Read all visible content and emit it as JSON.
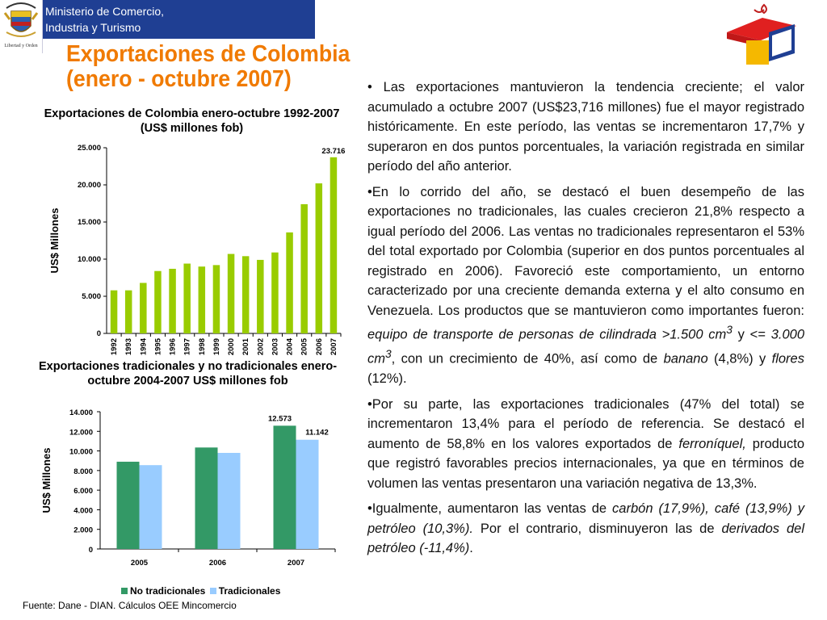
{
  "header": {
    "ministry_line1": "Ministerio de Comercio,",
    "ministry_line2": "Industria y Turismo",
    "logo_caption": "Libertad y Orden",
    "bar_color": "#1f3f93"
  },
  "title": {
    "line1": "Exportaciones de Colombia",
    "line2": "(enero - octubre 2007)",
    "color": "#f07a00"
  },
  "chart_data": [
    {
      "type": "bar",
      "title": "Exportaciones de Colombia enero-octubre 1992-2007 (US$ millones fob)",
      "ylabel": "US$ Millones",
      "xlabel": "",
      "ylim": [
        0,
        25000
      ],
      "yticks": [
        "0",
        "5.000",
        "10.000",
        "15.000",
        "20.000",
        "25.000"
      ],
      "categories": [
        "1992",
        "1993",
        "1994",
        "1995",
        "1996",
        "1997",
        "1998",
        "1999",
        "2000",
        "2001",
        "2002",
        "2003",
        "2004",
        "2005",
        "2006",
        "2007"
      ],
      "values": [
        5800,
        5800,
        6800,
        8400,
        8700,
        9400,
        9000,
        9200,
        10700,
        10400,
        9900,
        10900,
        13600,
        17400,
        20200,
        23716
      ],
      "data_labels": {
        "2007": "23.716"
      },
      "color": "#99cc00",
      "grid": false
    },
    {
      "type": "bar",
      "title": "Exportaciones tradicionales y no tradicionales enero- octubre 2004-2007 US$ millones fob",
      "ylabel": "US$ Millones",
      "xlabel": "",
      "ylim": [
        0,
        14000
      ],
      "yticks": [
        "0",
        "2.000",
        "4.000",
        "6.000",
        "8.000",
        "10.000",
        "12.000",
        "14.000"
      ],
      "categories": [
        "2005",
        "2006",
        "2007"
      ],
      "series": [
        {
          "name": "No tradicionales",
          "values": [
            8900,
            10350,
            12573
          ],
          "color": "#339966",
          "labels": [
            "",
            "",
            "12.573"
          ]
        },
        {
          "name": "Tradicionales",
          "values": [
            8550,
            9800,
            11142
          ],
          "color": "#99ccff",
          "labels": [
            "",
            "",
            "11.142"
          ]
        }
      ],
      "legend_position": "bottom",
      "grid": false
    }
  ],
  "body": {
    "p1": "• Las exportaciones mantuvieron la tendencia creciente; el valor acumulado a octubre 2007 (US$23,716 millones) fue el mayor registrado históricamente. En este período, las ventas se incrementaron 17,7% y superaron en dos puntos porcentuales, la variación registrada en similar período del año anterior.",
    "p2_a": "•En lo corrido del año, se destacó el buen desempeño de las exportaciones no tradicionales, las cuales crecieron 21,8% respecto a igual período del 2006. Las ventas no tradicionales representaron el 53% del total exportado por Colombia (superior en dos puntos porcentuales al registrado en 2006). Favoreció este comportamiento, un entorno caracterizado por una creciente demanda externa y el alto consumo en Venezuela. Los productos que se mantuvieron como importantes fueron: ",
    "p2_i1": "equipo de transporte de personas de cilindrada >1.500 cm",
    "p2_sup1": "3",
    "p2_b": " y <= ",
    "p2_i2": "3.000 cm",
    "p2_sup2": "3",
    "p2_c": ", con un crecimiento de 40%, así como de ",
    "p2_i3": "banano",
    "p2_d": " (4,8%) y ",
    "p2_i4": "flores",
    "p2_e": " (12%).",
    "p3_a": "•Por su parte, las exportaciones tradicionales (47% del total) se incrementaron 13,4% para el período de referencia. Se destacó el aumento de 58,8% en los valores exportados de ",
    "p3_i1": "ferroníquel,",
    "p3_b": " producto que registró favorables precios internacionales, ya que en términos de volumen las ventas presentaron una variación negativa de 13,3%.",
    "p4_a": "•Igualmente, aumentaron las ventas de ",
    "p4_i1": "carbón (17,9%), café (13,9%) y petróleo (10,3%).",
    "p4_b": " Por el contrario, disminuyeron las de ",
    "p4_i2": "derivados del petróleo (-11,4%)",
    "p4_c": "."
  },
  "source": "Fuente: Dane - DIAN. Cálculos OEE Mincomercio"
}
